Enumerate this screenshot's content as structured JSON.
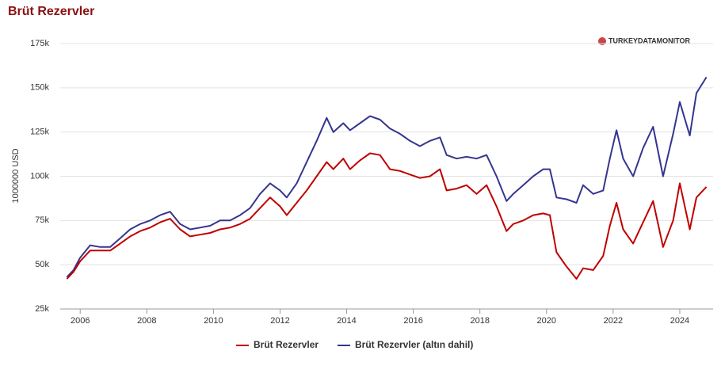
{
  "chart_data": {
    "type": "line",
    "title": "Brüt Rezervler",
    "ylabel": "1000000 USD",
    "watermark": "TURKEYDATAMONITOR",
    "x": [
      2005.6,
      2005.8,
      2006.0,
      2006.3,
      2006.6,
      2006.9,
      2007.2,
      2007.5,
      2007.8,
      2008.1,
      2008.4,
      2008.7,
      2009.0,
      2009.3,
      2009.6,
      2009.9,
      2010.2,
      2010.5,
      2010.8,
      2011.1,
      2011.4,
      2011.7,
      2012.0,
      2012.2,
      2012.5,
      2012.8,
      2013.1,
      2013.4,
      2013.6,
      2013.9,
      2014.1,
      2014.4,
      2014.7,
      2015.0,
      2015.3,
      2015.6,
      2015.9,
      2016.2,
      2016.5,
      2016.8,
      2017.0,
      2017.3,
      2017.6,
      2017.9,
      2018.2,
      2018.5,
      2018.8,
      2019.0,
      2019.3,
      2019.6,
      2019.9,
      2020.1,
      2020.3,
      2020.6,
      2020.9,
      2021.1,
      2021.4,
      2021.7,
      2021.9,
      2022.1,
      2022.3,
      2022.6,
      2022.9,
      2023.2,
      2023.5,
      2023.8,
      2024.0,
      2024.3,
      2024.5,
      2024.8
    ],
    "series": [
      {
        "name": "Brüt Rezervler",
        "color": "#c00000",
        "values": [
          42000,
          46000,
          52000,
          58000,
          58000,
          58000,
          62000,
          66000,
          69000,
          71000,
          74000,
          76000,
          70000,
          66000,
          67000,
          68000,
          70000,
          71000,
          73000,
          76000,
          82000,
          88000,
          83000,
          78000,
          85000,
          92000,
          100000,
          108000,
          104000,
          110000,
          104000,
          109000,
          113000,
          112000,
          104000,
          103000,
          101000,
          99000,
          100000,
          104000,
          92000,
          93000,
          95000,
          90000,
          95000,
          83000,
          69000,
          73000,
          75000,
          78000,
          79000,
          78000,
          57000,
          49000,
          42000,
          48000,
          47000,
          55000,
          72000,
          85000,
          70000,
          62000,
          74000,
          86000,
          60000,
          75000,
          96000,
          70000,
          88000,
          94000
        ]
      },
      {
        "name": "Brüt Rezervler (altın dahil)",
        "color": "#35358f",
        "values": [
          43000,
          47000,
          54000,
          61000,
          60000,
          60000,
          65000,
          70000,
          73000,
          75000,
          78000,
          80000,
          73000,
          70000,
          71000,
          72000,
          75000,
          75000,
          78000,
          82000,
          90000,
          96000,
          92000,
          88000,
          96000,
          108000,
          120000,
          133000,
          125000,
          130000,
          126000,
          130000,
          134000,
          132000,
          127000,
          124000,
          120000,
          117000,
          120000,
          122000,
          112000,
          110000,
          111000,
          110000,
          112000,
          100000,
          86000,
          90000,
          95000,
          100000,
          104000,
          104000,
          88000,
          87000,
          85000,
          95000,
          90000,
          92000,
          110000,
          126000,
          110000,
          100000,
          116000,
          128000,
          100000,
          124000,
          142000,
          123000,
          147000,
          156000
        ]
      }
    ],
    "xlim": [
      2005.4,
      2025.0
    ],
    "xticks": [
      2006,
      2008,
      2010,
      2012,
      2014,
      2016,
      2018,
      2020,
      2022,
      2024
    ],
    "ylim": [
      25000,
      175000
    ],
    "yticks": [
      {
        "value": 25000,
        "label": "25k"
      },
      {
        "value": 50000,
        "label": "50k"
      },
      {
        "value": 75000,
        "label": "75k"
      },
      {
        "value": 100000,
        "label": "100k"
      },
      {
        "value": 125000,
        "label": "125k"
      },
      {
        "value": 150000,
        "label": "150k"
      },
      {
        "value": 175000,
        "label": "175k"
      }
    ],
    "grid": true
  }
}
